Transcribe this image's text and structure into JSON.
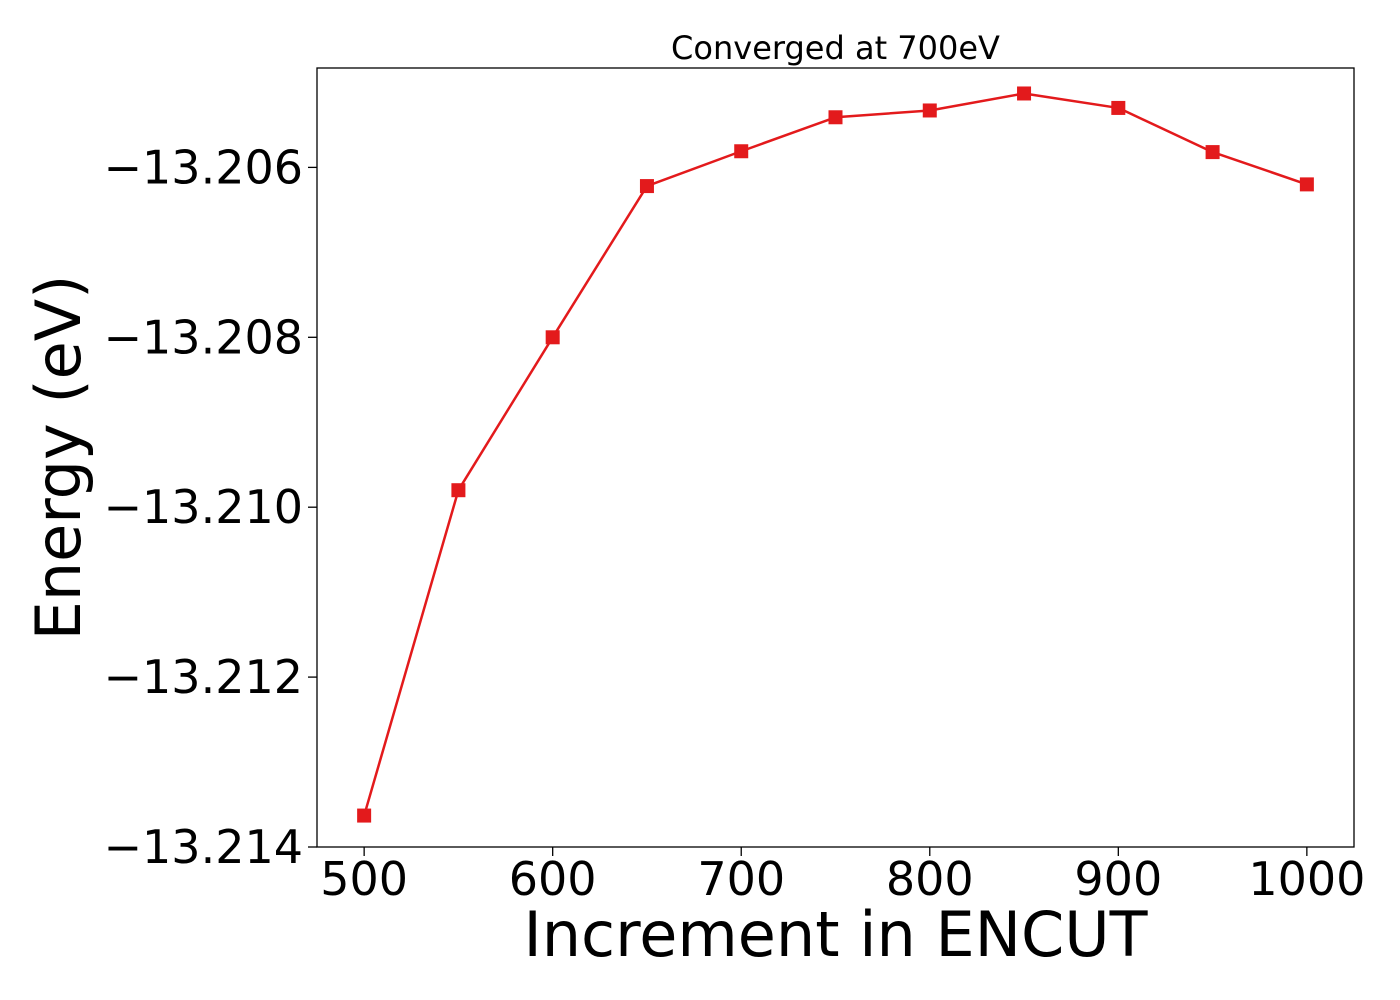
{
  "chart_data": {
    "type": "line",
    "title": "Converged at 700eV",
    "xlabel": "Increment in ENCUT",
    "ylabel": "Energy (eV)",
    "x": [
      500,
      550,
      600,
      650,
      700,
      750,
      800,
      850,
      900,
      950,
      1000
    ],
    "series": [
      {
        "color": "#e31a1c",
        "marker": "square",
        "values": [
          -13.21363,
          -13.2098,
          -13.208,
          -13.20622,
          -13.20581,
          -13.20541,
          -13.20533,
          -13.20513,
          -13.2053,
          -13.20582,
          -13.2062
        ]
      }
    ],
    "xticks": [
      500,
      600,
      700,
      800,
      900,
      1000
    ],
    "xtick_labels": [
      "500",
      "600",
      "700",
      "800",
      "900",
      "1000"
    ],
    "yticks": [
      -13.214,
      -13.212,
      -13.21,
      -13.208,
      -13.206
    ],
    "ytick_labels": [
      "−13.214",
      "−13.212",
      "−13.210",
      "−13.208",
      "−13.206"
    ],
    "xlim": [
      475,
      1025
    ],
    "ylim": [
      -13.214,
      -13.20483
    ],
    "grid": false,
    "legend": false
  }
}
